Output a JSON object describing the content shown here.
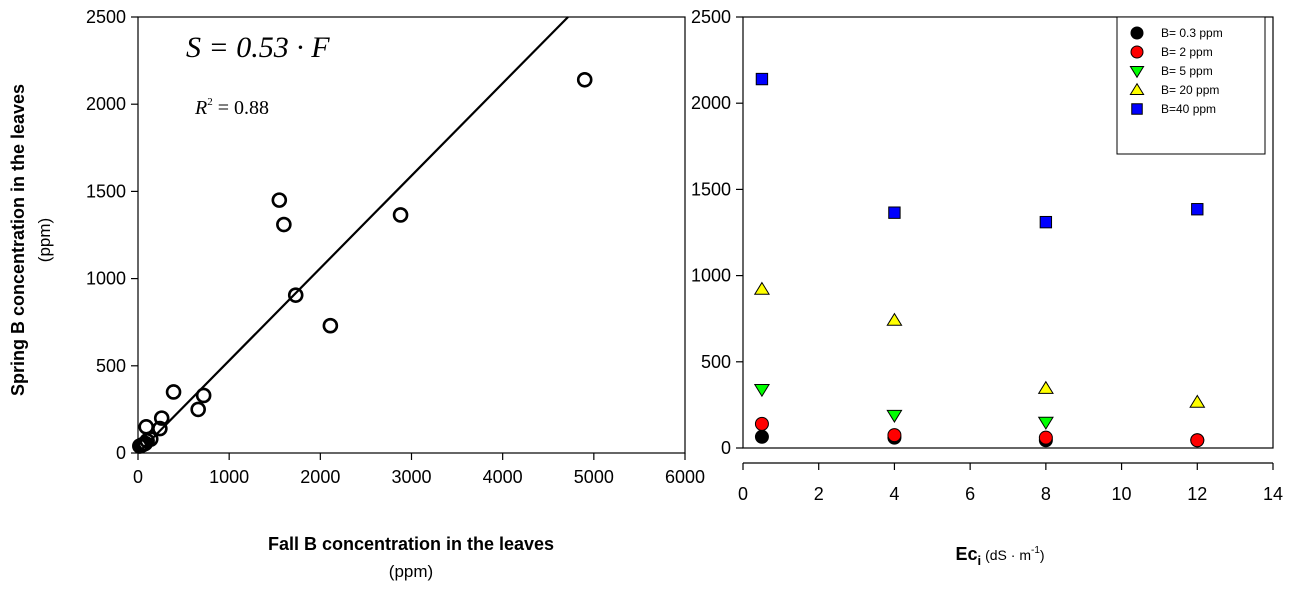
{
  "chart_data": [
    {
      "type": "scatter",
      "xlabel": "Fall B concentration in the leaves",
      "xlabel_unit": "(ppm)",
      "ylabel": "Spring B concentration in the leaves",
      "ylabel_unit": "(ppm)",
      "xlim": [
        0,
        6000
      ],
      "ylim": [
        0,
        2500
      ],
      "xticks": [
        "0",
        "1000",
        "2000",
        "3000",
        "4000",
        "5000",
        "6000"
      ],
      "yticks": [
        "0",
        "500",
        "1000",
        "1500",
        "2000",
        "2500"
      ],
      "grid": false,
      "marker": "open-circle",
      "annotations": {
        "equation": "S = 0.53 · F",
        "r_squared_label": "R",
        "r_squared_exponent": "2",
        "r_squared_value": " = 0.88"
      },
      "fit_line": {
        "slope": 0.53,
        "intercept": 0
      },
      "series": [
        {
          "points": [
            [
              20,
              40
            ],
            [
              40,
              45
            ],
            [
              60,
              50
            ],
            [
              80,
              55
            ],
            [
              100,
              70
            ],
            [
              140,
              80
            ],
            [
              90,
              150
            ],
            [
              240,
              140
            ],
            [
              260,
              200
            ],
            [
              390,
              350
            ],
            [
              660,
              250
            ],
            [
              720,
              330
            ],
            [
              1550,
              1450
            ],
            [
              1600,
              1310
            ],
            [
              1730,
              905
            ],
            [
              2110,
              730
            ],
            [
              2880,
              1365
            ],
            [
              4900,
              2140
            ]
          ]
        }
      ]
    },
    {
      "type": "scatter",
      "xlabel": "Ec",
      "xlabel_sub": "i",
      "xlabel_unit_pre": "(dS · m",
      "xlabel_unit_sup": "-1",
      "xlabel_unit_post": ")",
      "ylabel": "",
      "xlim": [
        0,
        14
      ],
      "ylim": [
        0,
        2500
      ],
      "xticks": [
        "0",
        "2",
        "4",
        "6",
        "8",
        "10",
        "12",
        "14"
      ],
      "yticks": [
        "0",
        "500",
        "1000",
        "1500",
        "2000",
        "2500"
      ],
      "grid": false,
      "legend": "top-right",
      "series": [
        {
          "name": "B= 0.3 ppm",
          "marker": "circle",
          "color": "#000000",
          "x": [
            0.5,
            4,
            8,
            12
          ],
          "y": [
            65,
            60,
            45,
            45
          ]
        },
        {
          "name": "B= 2 ppm",
          "marker": "circle",
          "color": "#ff0000",
          "x": [
            0.5,
            4,
            8,
            12
          ],
          "y": [
            140,
            75,
            60,
            45
          ]
        },
        {
          "name": "B= 5 ppm",
          "marker": "triangle-down",
          "color": "#00ff00",
          "x": [
            0.5,
            4,
            8
          ],
          "y": [
            340,
            190,
            150
          ]
        },
        {
          "name": "B= 20 ppm",
          "marker": "triangle-up",
          "color": "#ffff00",
          "x": [
            0.5,
            4,
            8,
            12
          ],
          "y": [
            920,
            740,
            345,
            265
          ]
        },
        {
          "name": "B=40 ppm",
          "marker": "square",
          "color": "#0000ff",
          "x": [
            0.5,
            4,
            8,
            12
          ],
          "y": [
            2140,
            1365,
            1310,
            1385
          ]
        }
      ]
    }
  ]
}
